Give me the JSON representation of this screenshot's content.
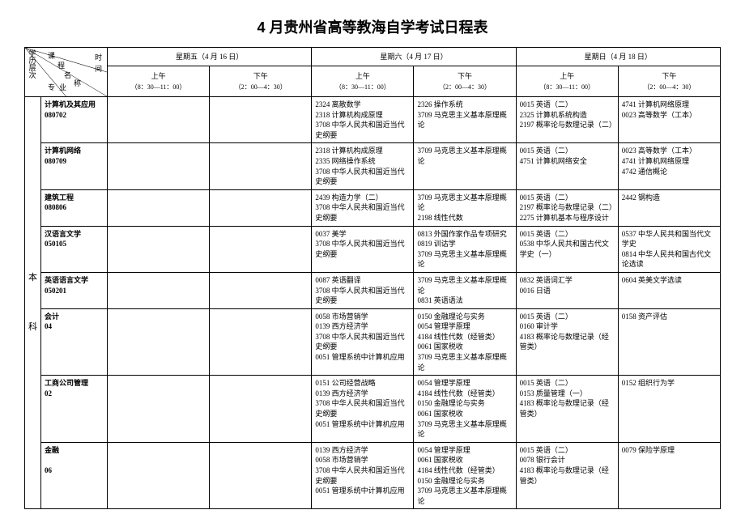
{
  "title": "4 月贵州省高等教海自学考试日程表",
  "header": {
    "diag": {
      "top": "课",
      "mid1": "程",
      "mid2": "名",
      "btm": "专",
      "btm2": "业",
      "right1": "时",
      "right2": "间",
      "right3": "称",
      "left": "学历层次"
    },
    "days": [
      {
        "label": "星期五（4 月 16 日）",
        "am": "上午",
        "am_time": "（8：30—11：00）",
        "pm": "下午",
        "pm_time": "（2：00—4：30）"
      },
      {
        "label": "星期六（4 月 17 日）",
        "am": "上午",
        "am_time": "（8：30—11：00）",
        "pm": "下午",
        "pm_time": "（2：00—4：30）"
      },
      {
        "label": "星期日（4 月 18 日）",
        "am": "上午",
        "am_time": "（8：30—11：00）",
        "pm": "下午",
        "pm_time": "（2：00—4：30）"
      }
    ]
  },
  "level": "本\n\n\n\n科",
  "rows": [
    {
      "major": "计算机及其应用\n080702",
      "c": [
        "",
        "",
        "2324 离散数学\n2318 计算机构成原理\n3708 中华人民共和国近当代史纲要",
        "2326 操作系统\n3709 马克思主义基本原理概论",
        "0015 英语（二）\n2325 计算机系统构造\n2197 概率论与数理记录（二）",
        "4741 计算机网络原理\n0023 高等数学（工本）"
      ]
    },
    {
      "major": "计算机网络\n080709",
      "c": [
        "",
        "",
        "2318 计算机构成原理\n2335 网络操作系统\n3708 中华人民共和国近当代史纲要",
        "3709 马克思主义基本原理概论",
        "0015 英语（二）\n4751 计算机网络安全",
        "0023 高等数学（工本）\n4741 计算机网络原理\n4742 通信概论"
      ]
    },
    {
      "major": "建筑工程\n080806",
      "c": [
        "",
        "",
        "2439 构造力学（二）\n3708 中华人民共和国近当代史纲要",
        "3709 马克思主义基本原理概论\n2198 线性代数",
        "0015 英语（二）\n2197 概率论与数理记录（二）\n2275 计算机基本与程序设计",
        "2442 钢构造"
      ]
    },
    {
      "major": "汉语言文学\n050105",
      "c": [
        "",
        "",
        "0037 美学\n3708 中华人民共和国近当代史纲要",
        "0813 外国作家作品专项研究\n0819 训诂学\n3709 马克思主义基本原理概论",
        "0015 英语（二）\n0538 中华人民共和国古代文学史（一）",
        "0537 中华人民共和国当代文学史\n0814 中华人民共和国古代文论选读"
      ]
    },
    {
      "major": "英语语言文学\n050201",
      "c": [
        "",
        "",
        "0087 英语翻译\n3708 中华人民共和国近当代史纲要",
        "3709 马克思主义基本原理概论\n0831 英语语法",
        "0832 英语词汇学\n0016 日语",
        "0604 英美文学选读"
      ]
    },
    {
      "major": "会计\n04",
      "c": [
        "",
        "",
        "0058 市场营销学\n0139 西方经济学\n3708 中华人民共和国近当代史纲要\n0051 管理系统中计算机应用",
        "0150 金融理论与实务\n0054 管理学原理\n4184 线性代数（经管类）\n0061 国家税收\n3709 马克思主义基本原理概论",
        "0015 英语（二）\n0160 审计学\n4183 概率论与数理记录（经管类）",
        "0158 资产评估"
      ]
    },
    {
      "major": "工商公司管理\n02",
      "c": [
        "",
        "",
        "0151 公司经营战略\n0139 西方经济学\n3708 中华人民共和国近当代史纲要\n0051 管理系统中计算机应用",
        "0054 管理学原理\n4184 线性代数（经管类）\n0150 金融理论与实务\n0061 国家税收\n3709 马克思主义基本原理概论",
        "0015 英语（二）\n0153 质量管理（一）\n4183 概率论与数理记录（经管类）",
        "0152 组织行为学"
      ]
    },
    {
      "major": "金融\n\n06",
      "c": [
        "",
        "",
        "0139 西方经济学\n0058 市场营销学\n3708 中华人民共和国近当代史纲要\n0051 管理系统中计算机应用",
        "0054 管理学原理\n0061 国家税收\n4184 线性代数（经管类）\n0150 金融理论与实务\n3709 马克思主义基本原理概论",
        "0015 英语（二）\n0078 银行会计\n4183 概率论与数理记录（经管类）",
        "0079 保险学原理"
      ]
    }
  ]
}
